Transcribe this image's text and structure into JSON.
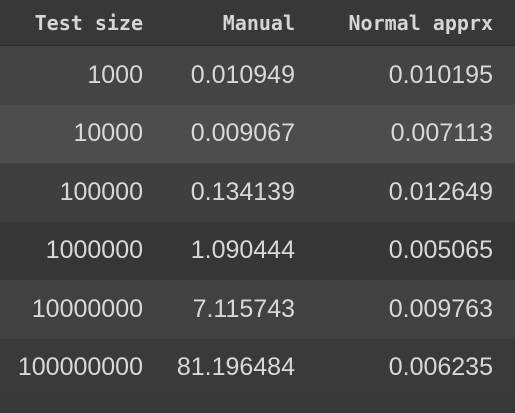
{
  "table": {
    "headers": [
      "Test size",
      "Manual",
      "Normal apprx"
    ],
    "rows": [
      [
        "1000",
        "0.010949",
        "0.010195"
      ],
      [
        "10000",
        "0.009067",
        "0.007113"
      ],
      [
        "100000",
        "0.134139",
        "0.012649"
      ],
      [
        "1000000",
        "1.090444",
        "0.005065"
      ],
      [
        "10000000",
        "7.115743",
        "0.009763"
      ],
      [
        "100000000",
        "81.196484",
        "0.006235"
      ]
    ]
  }
}
